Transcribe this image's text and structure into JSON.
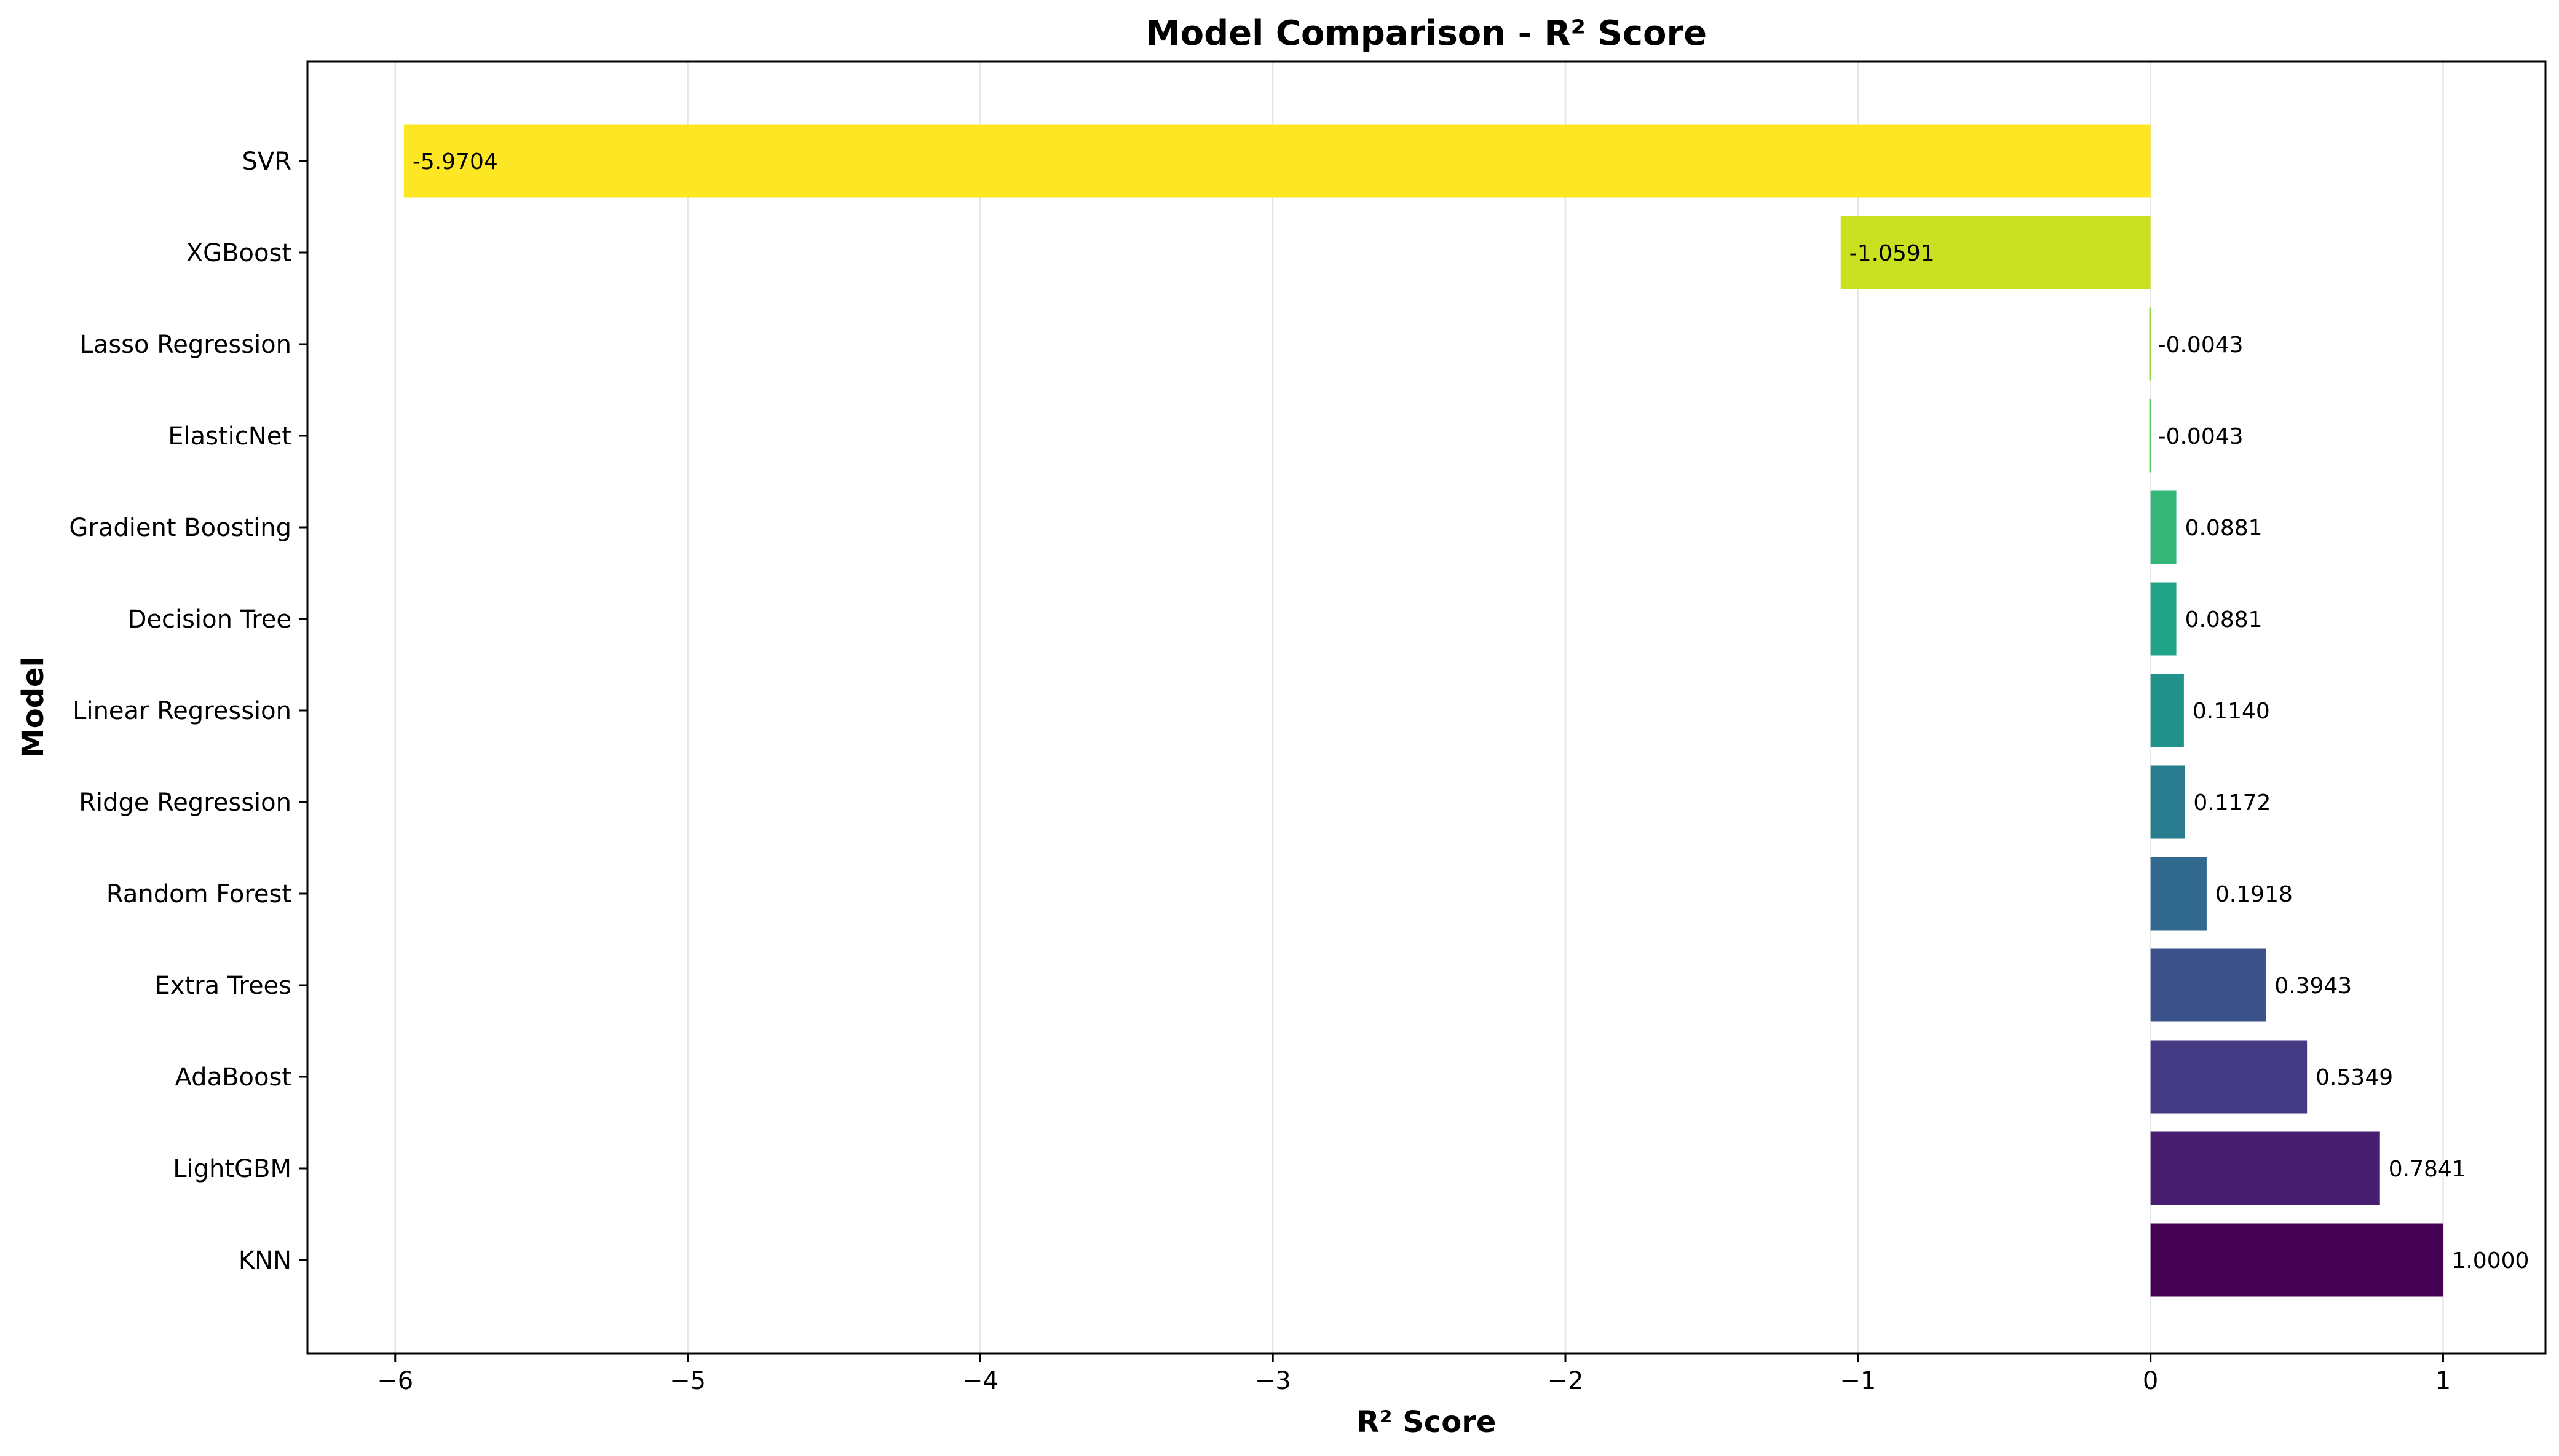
{
  "chart_data": {
    "type": "bar",
    "orientation": "horizontal",
    "title": "Model Comparison - R² Score",
    "xlabel": "R² Score",
    "ylabel": "Model",
    "categories": [
      "KNN",
      "LightGBM",
      "AdaBoost",
      "Extra Trees",
      "Random Forest",
      "Ridge Regression",
      "Linear Regression",
      "Decision Tree",
      "Gradient Boosting",
      "ElasticNet",
      "Lasso Regression",
      "XGBoost",
      "SVR"
    ],
    "values": [
      1.0,
      0.7841,
      0.5349,
      0.3943,
      0.1918,
      0.1172,
      0.114,
      0.0881,
      0.0881,
      -0.0043,
      -0.0043,
      -1.0591,
      -5.9704
    ],
    "data_labels": [
      "1.0000",
      "0.7841",
      "0.5349",
      "0.3943",
      "0.1918",
      "0.1172",
      "0.1140",
      "0.0881",
      "0.0881",
      "-0.0043",
      "-0.0043",
      "-1.0591",
      "-5.9704"
    ],
    "colors": [
      "#440154",
      "#481f70",
      "#443983",
      "#3b528b",
      "#31688e",
      "#287c8e",
      "#21918c",
      "#20a386",
      "#35b779",
      "#5ec962",
      "#90d743",
      "#c8e020",
      "#fde725"
    ],
    "xlim": [
      -6.3,
      1.35
    ],
    "xticks": [
      -6,
      -5,
      -4,
      -3,
      -2,
      -1,
      0,
      1
    ],
    "xtick_labels": [
      "−6",
      "−5",
      "−4",
      "−3",
      "−2",
      "−1",
      "0",
      "1"
    ],
    "grid": "x",
    "legend": "none"
  }
}
